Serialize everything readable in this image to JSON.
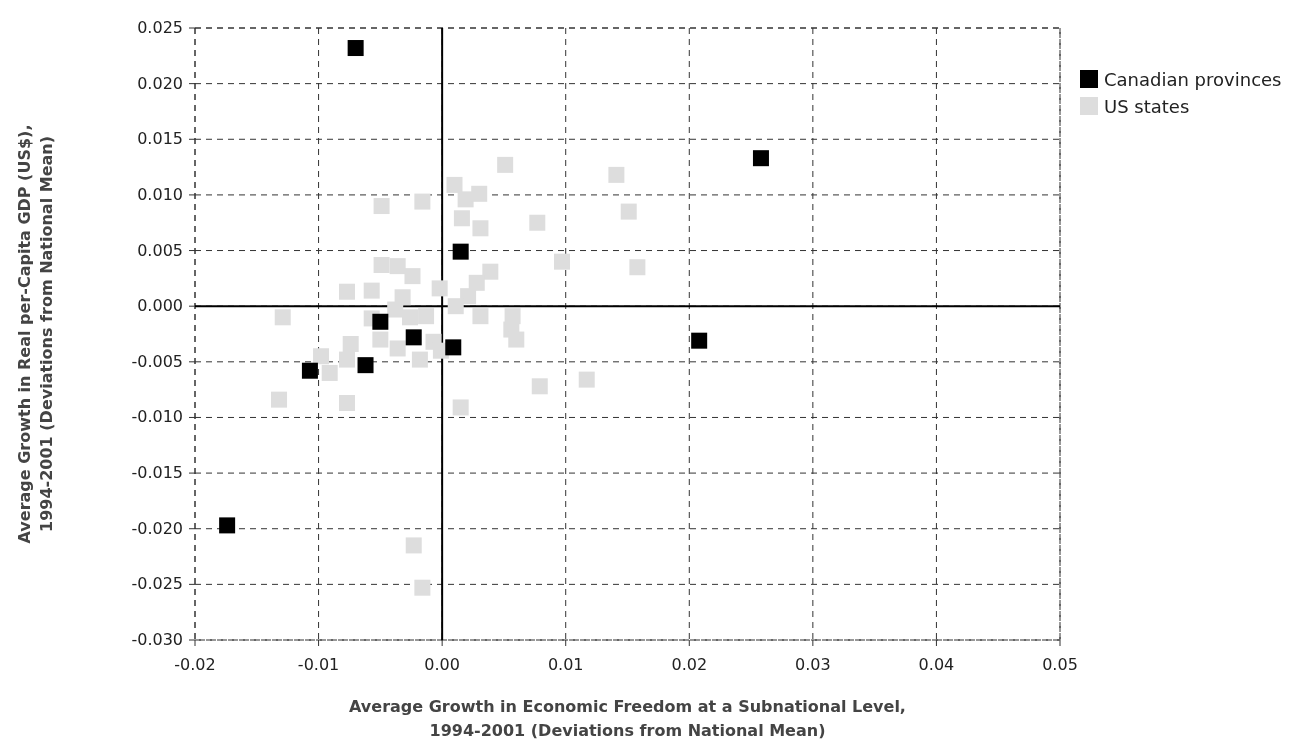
{
  "chart_data": {
    "type": "scatter",
    "xlabel": "Average Growth in Economic Freedom at a Subnational Level,\n1994-2001 (Deviations from National Mean)",
    "ylabel": "Average Growth in Real per-Capita GDP (US$),\n1994-2001 (Deviations from National Mean)",
    "xlim": [
      -0.02,
      0.05
    ],
    "xticks": [
      {
        "value": -0.02,
        "label": "-0.02"
      },
      {
        "value": -0.01,
        "label": "-0.01"
      },
      {
        "value": 0,
        "label": "0.00"
      },
      {
        "value": 0.01,
        "label": "0.01"
      },
      {
        "value": 0.02,
        "label": "0.02"
      },
      {
        "value": 0.03,
        "label": "0.03"
      },
      {
        "value": 0.04,
        "label": "0.04"
      },
      {
        "value": 0.05,
        "label": "0.05"
      }
    ],
    "ylim": [
      -0.03,
      0.025
    ],
    "yticks": [
      {
        "value": -0.03,
        "label": "-0.030"
      },
      {
        "value": -0.025,
        "label": "-0.025"
      },
      {
        "value": -0.02,
        "label": "-0.020"
      },
      {
        "value": -0.015,
        "label": "-0.015"
      },
      {
        "value": -0.01,
        "label": "-0.010"
      },
      {
        "value": -0.005,
        "label": "-0.005"
      },
      {
        "value": 0,
        "label": "0.000"
      },
      {
        "value": 0.005,
        "label": "0.005"
      },
      {
        "value": 0.01,
        "label": "0.010"
      },
      {
        "value": 0.015,
        "label": "0.015"
      },
      {
        "value": 0.02,
        "label": "0.020"
      },
      {
        "value": 0.025,
        "label": "0.025"
      }
    ],
    "grid": true,
    "legend": "top right",
    "marker": "square",
    "series": [
      {
        "name": "US states",
        "color": "#dddddd",
        "x": [
          0.0051,
          0.001,
          0.0019,
          0.003,
          -0.0049,
          -0.0016,
          0.0016,
          0.0031,
          -0.0049,
          -0.0036,
          -0.0024,
          -0.0077,
          -0.0057,
          -0.0002,
          -0.0032,
          0.0039,
          0.0028,
          0.0021,
          0.0011,
          -0.0038,
          -0.0026,
          -0.0013,
          -0.0057,
          0.0031,
          -0.0129,
          -0.005,
          -0.0074,
          -0.0036,
          -0.0007,
          -0.0001,
          -0.0018,
          -0.0098,
          -0.0077,
          -0.0091,
          -0.0132,
          -0.0077,
          0.0015,
          0.0141,
          0.0151,
          0.0077,
          0.0097,
          0.0158,
          0.0057,
          0.0056,
          0.006,
          0.0079,
          0.0117,
          -0.0023,
          -0.0016
        ],
        "values": [
          0.0127,
          0.0109,
          0.0096,
          0.0101,
          0.009,
          0.0094,
          0.0079,
          0.007,
          0.0037,
          0.0036,
          0.0027,
          0.0013,
          0.0014,
          0.0016,
          0.0008,
          0.0031,
          0.0021,
          0.0009,
          0.0,
          -0.0003,
          -0.001,
          -0.0009,
          -0.0011,
          -0.0009,
          -0.001,
          -0.003,
          -0.0034,
          -0.0038,
          -0.0032,
          -0.004,
          -0.0048,
          -0.0045,
          -0.0048,
          -0.006,
          -0.0084,
          -0.0087,
          -0.0091,
          0.0118,
          0.0085,
          0.0075,
          0.004,
          0.0035,
          -0.0009,
          -0.0021,
          -0.003,
          -0.0072,
          -0.0066,
          -0.0215,
          -0.0253
        ]
      },
      {
        "name": "Canadian provinces",
        "color": "#000000",
        "x": [
          -0.007,
          0.0258,
          0.0015,
          -0.005,
          -0.0023,
          0.0009,
          -0.0062,
          -0.0107,
          0.0208,
          -0.0174
        ],
        "values": [
          0.0232,
          0.0133,
          0.0049,
          -0.0014,
          -0.0028,
          -0.0037,
          -0.0053,
          -0.0058,
          -0.0031,
          -0.0197
        ]
      }
    ]
  }
}
